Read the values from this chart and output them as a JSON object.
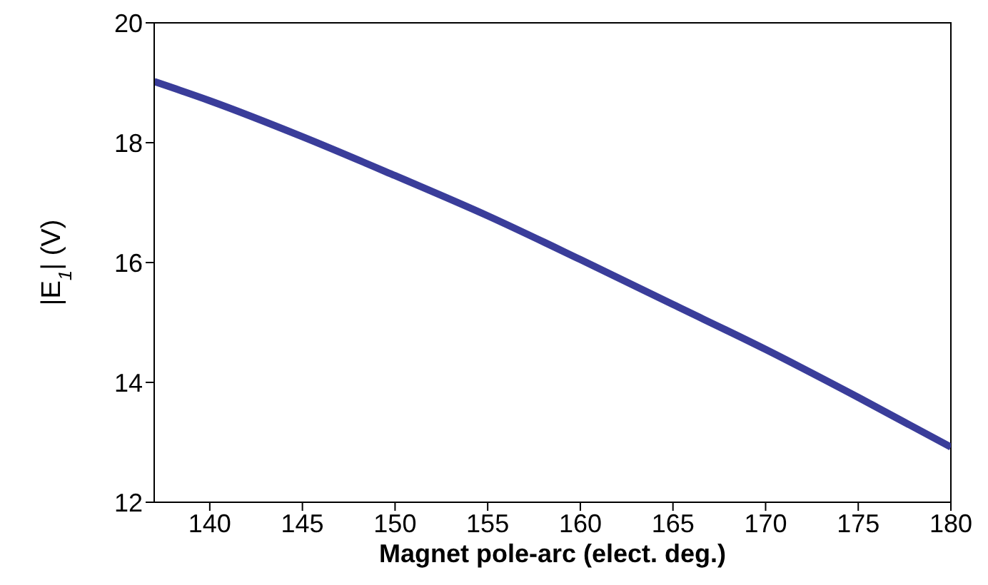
{
  "chart_data": {
    "type": "line",
    "xlabel": "Magnet pole-arc (elect. deg.)",
    "ylabel": "|E$_{1}$| (V)",
    "x": [
      137,
      140,
      145,
      150,
      155,
      160,
      165,
      170,
      175,
      180
    ],
    "series": [
      {
        "color": "#3a3d9a",
        "values": [
          19.02,
          18.7,
          18.1,
          17.45,
          16.78,
          16.05,
          15.3,
          14.55,
          13.75,
          12.92
        ]
      }
    ],
    "xlim": [
      137,
      180
    ],
    "xticks": [
      140,
      145,
      150,
      155,
      160,
      165,
      170,
      175,
      180
    ],
    "ylim": [
      12,
      20
    ],
    "yticks": [
      12,
      14,
      16,
      18,
      20
    ],
    "marker": "none",
    "line_style": "solid"
  }
}
